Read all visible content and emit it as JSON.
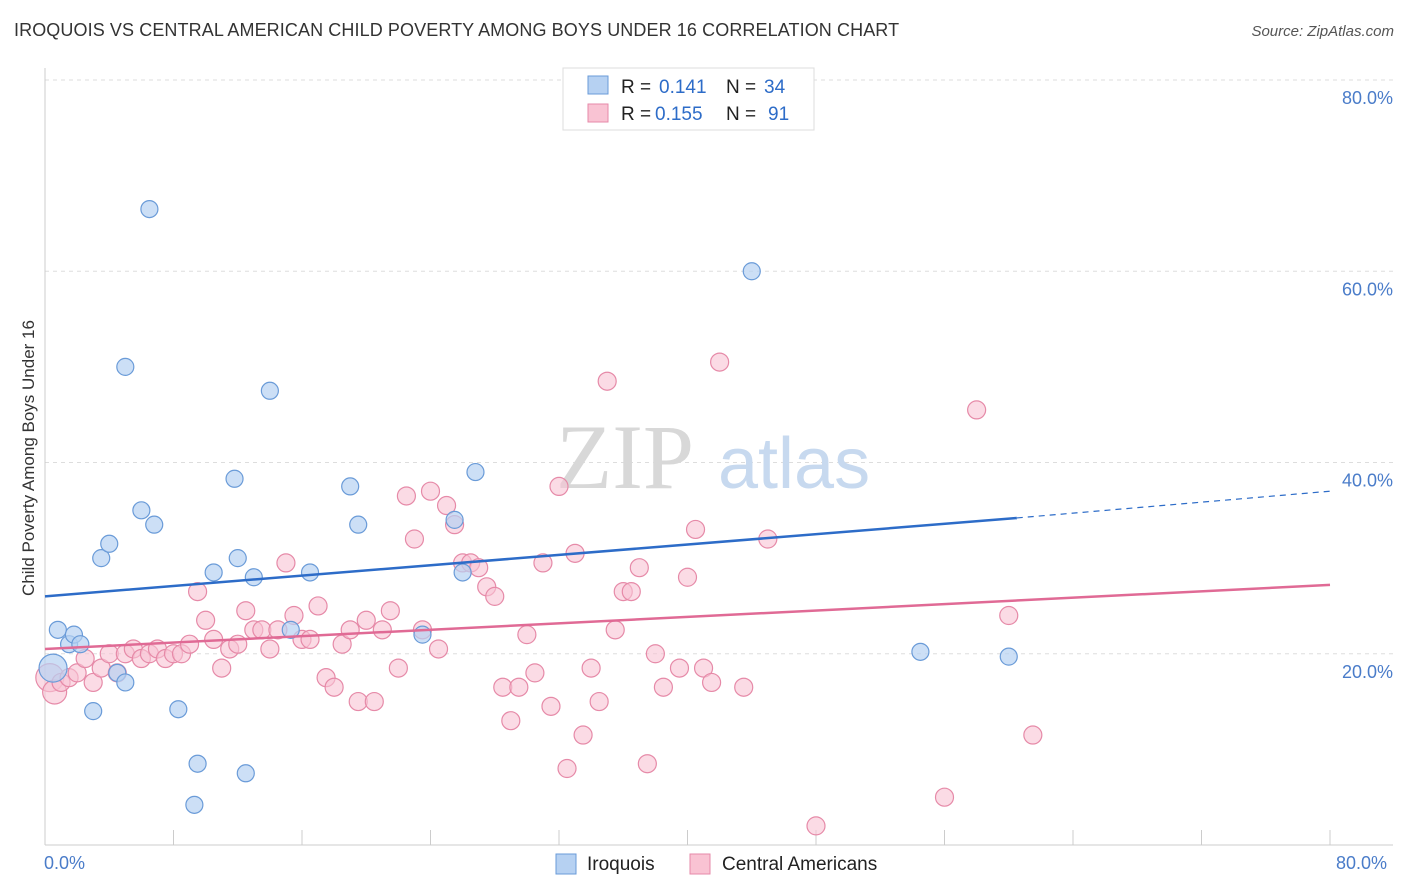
{
  "header": {
    "title": "IROQUOIS VS CENTRAL AMERICAN CHILD POVERTY AMONG BOYS UNDER 16 CORRELATION CHART",
    "source": "Source: ZipAtlas.com"
  },
  "watermark": {
    "zip": "ZIP",
    "atlas": "atlas"
  },
  "legend": {
    "rows": [
      {
        "r_label": "R =",
        "r_value": "0.141",
        "n_label": "N =",
        "n_value": "34"
      },
      {
        "r_label": "R =",
        "r_value": "0.155",
        "n_label": "N =",
        "n_value": "91"
      }
    ]
  },
  "bottom_legend": {
    "series1": "Iroquois",
    "series2": "Central Americans"
  },
  "axes": {
    "ylabel": "Child Poverty Among Boys Under 16",
    "x_min_label": "0.0%",
    "x_max_label": "80.0%",
    "y_ticks": [
      "20.0%",
      "40.0%",
      "60.0%",
      "80.0%"
    ]
  },
  "colors": {
    "iroquois_fill": "#b6d1f2",
    "iroquois_stroke": "#6a9bd8",
    "iroquois_line": "#2d6cc8",
    "central_fill": "#f9c3d3",
    "central_stroke": "#e68aa8",
    "central_line": "#e06a95",
    "grid": "#dddddd",
    "tick_text": "#4a7cc9"
  },
  "chart_data": {
    "type": "scatter",
    "title": "IROQUOIS VS CENTRAL AMERICAN CHILD POVERTY AMONG BOYS UNDER 16 CORRELATION CHART",
    "xlabel": "",
    "ylabel": "Child Poverty Among Boys Under 16",
    "xlim": [
      0,
      80
    ],
    "ylim": [
      0,
      80
    ],
    "grid": true,
    "legend_position": "top-center",
    "series": [
      {
        "name": "Iroquois",
        "r": 0.141,
        "n": 34,
        "trend": {
          "x": [
            0,
            60.5
          ],
          "y": [
            26.0,
            34.2
          ],
          "dashed_to": [
            80,
            37.0
          ]
        },
        "points": [
          [
            0.5,
            18.5
          ],
          [
            0.8,
            22.5
          ],
          [
            1.5,
            21.0
          ],
          [
            1.8,
            22.0
          ],
          [
            2.2,
            21.0
          ],
          [
            3.0,
            14.0
          ],
          [
            3.5,
            30.0
          ],
          [
            4.0,
            31.5
          ],
          [
            4.5,
            18.0
          ],
          [
            5.0,
            17.0
          ],
          [
            6.0,
            35.0
          ],
          [
            6.8,
            33.5
          ],
          [
            6.5,
            66.5
          ],
          [
            5.0,
            50.0
          ],
          [
            8.3,
            14.2
          ],
          [
            9.5,
            8.5
          ],
          [
            9.3,
            4.2
          ],
          [
            10.5,
            28.5
          ],
          [
            11.8,
            38.3
          ],
          [
            12.0,
            30.0
          ],
          [
            12.5,
            7.5
          ],
          [
            13.0,
            28.0
          ],
          [
            14.0,
            47.5
          ],
          [
            15.3,
            22.5
          ],
          [
            16.5,
            28.5
          ],
          [
            19.0,
            37.5
          ],
          [
            19.5,
            33.5
          ],
          [
            23.5,
            22.0
          ],
          [
            25.5,
            34.0
          ],
          [
            26.0,
            28.5
          ],
          [
            26.8,
            39.0
          ],
          [
            44.0,
            60.0
          ],
          [
            54.5,
            20.2
          ],
          [
            60.0,
            19.7
          ]
        ]
      },
      {
        "name": "Central Americans",
        "r": 0.155,
        "n": 91,
        "trend": {
          "x": [
            0,
            80
          ],
          "y": [
            20.5,
            27.2
          ]
        },
        "points": [
          [
            0.3,
            17.5
          ],
          [
            0.6,
            16.0
          ],
          [
            1.0,
            17.0
          ],
          [
            1.5,
            17.5
          ],
          [
            2.0,
            18.0
          ],
          [
            2.5,
            19.5
          ],
          [
            3.0,
            17.0
          ],
          [
            3.5,
            18.5
          ],
          [
            4.0,
            20.0
          ],
          [
            4.5,
            18.0
          ],
          [
            5.0,
            20.0
          ],
          [
            5.5,
            20.5
          ],
          [
            6.0,
            19.5
          ],
          [
            6.5,
            20.0
          ],
          [
            7.0,
            20.5
          ],
          [
            7.5,
            19.5
          ],
          [
            8.0,
            20.0
          ],
          [
            8.5,
            20.0
          ],
          [
            9.0,
            21.0
          ],
          [
            9.5,
            26.5
          ],
          [
            10.0,
            23.5
          ],
          [
            10.5,
            21.5
          ],
          [
            11.0,
            18.5
          ],
          [
            11.5,
            20.5
          ],
          [
            12.0,
            21.0
          ],
          [
            12.5,
            24.5
          ],
          [
            13.0,
            22.5
          ],
          [
            13.5,
            22.5
          ],
          [
            14.0,
            20.5
          ],
          [
            14.5,
            22.5
          ],
          [
            15.0,
            29.5
          ],
          [
            15.5,
            24.0
          ],
          [
            16.0,
            21.5
          ],
          [
            16.5,
            21.5
          ],
          [
            17.0,
            25.0
          ],
          [
            17.5,
            17.5
          ],
          [
            18.0,
            16.5
          ],
          [
            18.5,
            21.0
          ],
          [
            19.0,
            22.5
          ],
          [
            19.5,
            15.0
          ],
          [
            20.0,
            23.5
          ],
          [
            20.5,
            15.0
          ],
          [
            21.0,
            22.5
          ],
          [
            21.5,
            24.5
          ],
          [
            22.0,
            18.5
          ],
          [
            22.5,
            36.5
          ],
          [
            23.0,
            32.0
          ],
          [
            23.5,
            22.5
          ],
          [
            24.0,
            37.0
          ],
          [
            24.5,
            20.5
          ],
          [
            25.0,
            35.5
          ],
          [
            25.5,
            33.5
          ],
          [
            26.0,
            29.5
          ],
          [
            26.5,
            29.5
          ],
          [
            27.0,
            29.0
          ],
          [
            27.5,
            27.0
          ],
          [
            28.0,
            26.0
          ],
          [
            28.5,
            16.5
          ],
          [
            29.0,
            13.0
          ],
          [
            29.5,
            16.5
          ],
          [
            30.0,
            22.0
          ],
          [
            30.5,
            18.0
          ],
          [
            31.0,
            29.5
          ],
          [
            31.5,
            14.5
          ],
          [
            32.0,
            37.5
          ],
          [
            32.5,
            8.0
          ],
          [
            33.0,
            30.5
          ],
          [
            33.5,
            11.5
          ],
          [
            34.0,
            18.5
          ],
          [
            34.5,
            15.0
          ],
          [
            35.0,
            48.5
          ],
          [
            35.5,
            22.5
          ],
          [
            36.0,
            26.5
          ],
          [
            36.5,
            26.5
          ],
          [
            37.0,
            29.0
          ],
          [
            37.5,
            8.5
          ],
          [
            38.0,
            20.0
          ],
          [
            38.5,
            16.5
          ],
          [
            39.5,
            18.5
          ],
          [
            40.0,
            28.0
          ],
          [
            40.5,
            33.0
          ],
          [
            41.0,
            18.5
          ],
          [
            41.5,
            17.0
          ],
          [
            42.0,
            50.5
          ],
          [
            43.5,
            16.5
          ],
          [
            45.0,
            32.0
          ],
          [
            48.0,
            2.0
          ],
          [
            56.0,
            5.0
          ],
          [
            58.0,
            45.5
          ],
          [
            60.0,
            24.0
          ],
          [
            61.5,
            11.5
          ]
        ]
      }
    ]
  }
}
